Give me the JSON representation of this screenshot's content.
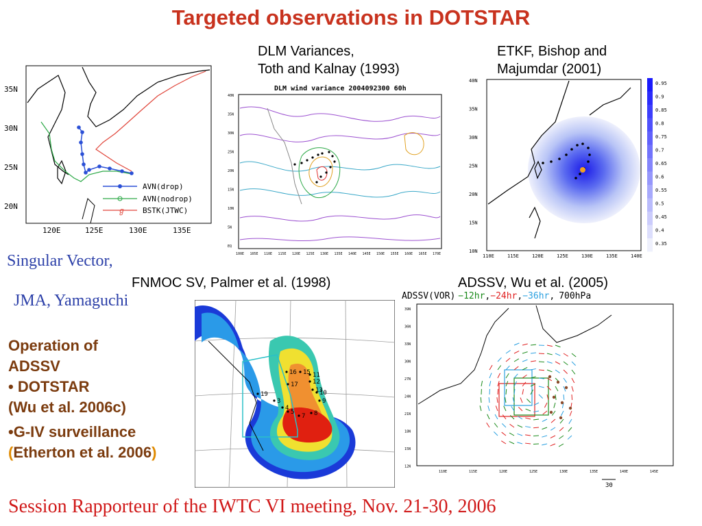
{
  "slide": {
    "title": "Targeted observations in DOTSTAR",
    "footer": "Session Rapporteur of the IWTC VI meeting, Nov. 21-30, 2006"
  },
  "captions": {
    "dlm_line1": "DLM Variances,",
    "dlm_line2": "Toth and Kalnay (1993)",
    "etkf_line1": "ETKF, Bishop and",
    "etkf_line2": "Majumdar (2001)",
    "sv_line1": "Singular Vector,",
    "sv_line2": "JMA, Yamaguchi",
    "fnmoc": "FNMOC SV, Palmer et al. (1998)",
    "adssv": "ADSSV, Wu et al. (2005)"
  },
  "operation": {
    "line1": "Operation of",
    "line2": "ADSSV",
    "bullet1": "DOTSTAR",
    "bullet1_ref": "(Wu et al. 2006c)",
    "bullet2": "G-IV surveillance",
    "bullet2_paren_open": "(",
    "bullet2_ref": "Etherton et al. 2006",
    "bullet2_paren_close": ")"
  },
  "track_map": {
    "y_ticks": [
      "35N",
      "30N",
      "25N",
      "20N"
    ],
    "x_ticks": [
      "120E",
      "125E",
      "130E",
      "135E"
    ],
    "legend": [
      "AVN(drop)",
      "AVN(nodrop)",
      "BSTK(JTWC)"
    ],
    "colors": {
      "drop": "#2a4fd6",
      "nodrop": "#2aa845",
      "bstk": "#e0453a"
    }
  },
  "dlm_map": {
    "plot_title": "DLM wind variance 2004092300 60h",
    "y_ticks": [
      "40N",
      "35N",
      "30N",
      "25N",
      "20N",
      "15N",
      "10N",
      "5N",
      "EQ"
    ],
    "x_ticks": [
      "100E",
      "105E",
      "110E",
      "115E",
      "120E",
      "125E",
      "130E",
      "135E",
      "140E",
      "145E",
      "150E",
      "155E",
      "160E",
      "165E",
      "170E"
    ]
  },
  "etkf_map": {
    "y_ticks": [
      "40N",
      "35N",
      "30N",
      "25N",
      "20N",
      "15N",
      "10N"
    ],
    "x_ticks": [
      "110E",
      "115E",
      "120E",
      "125E",
      "130E",
      "135E",
      "140E"
    ],
    "scale_labels": [
      "0.95",
      "0.9",
      "0.85",
      "0.8",
      "0.75",
      "0.7",
      "0.65",
      "0.6",
      "0.55",
      "0.5",
      "0.45",
      "0.4",
      "0.35"
    ]
  },
  "adssv_map": {
    "header_prefix": "ADSSV(VOR)",
    "h12": "−12hr",
    "h24": "−24hr",
    "h36": "−36hr",
    "level": "700hPa",
    "comma": ",",
    "y_ticks": [
      "39N",
      "36N",
      "33N",
      "30N",
      "27N",
      "24N",
      "21N",
      "18N",
      "15N",
      "12N"
    ],
    "x_ticks": [
      "110E",
      "115E",
      "120E",
      "125E",
      "130E",
      "135E",
      "140E",
      "145E"
    ],
    "ref_vector": "30",
    "colors": {
      "h12": "#1a8a1a",
      "h24": "#e02020",
      "h36": "#2aa0e0"
    }
  },
  "fnmoc_map": {
    "labels": [
      "16",
      "15",
      "11",
      "17",
      "12",
      "19",
      "13",
      "10",
      "9",
      "4",
      "5",
      "7",
      "8",
      "3"
    ]
  }
}
